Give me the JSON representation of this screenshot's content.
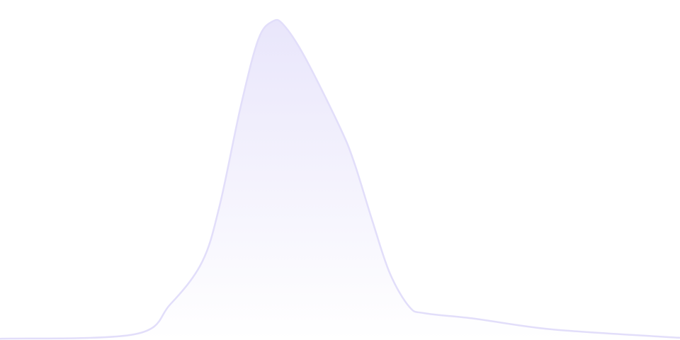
{
  "chart_data": {
    "type": "area",
    "title": "",
    "xlabel": "",
    "ylabel": "",
    "xlim": [
      0,
      100
    ],
    "ylim": [
      0,
      106.7
    ],
    "grid": false,
    "axes_visible": false,
    "legend": "none",
    "x": [
      0,
      19.8,
      25,
      29.7,
      32.3,
      35.4,
      38,
      40.1,
      41.7,
      44.8,
      50,
      52.1,
      54.7,
      57.3,
      60.2,
      62.5,
      69.8,
      81.3,
      100
    ],
    "values": [
      0.4,
      1.8,
      11.1,
      24.4,
      42.2,
      73.3,
      94.4,
      100,
      98.9,
      88.9,
      66.7,
      55.6,
      37.8,
      21.1,
      10.4,
      8.4,
      6.7,
      3.3,
      0.7
    ],
    "colors": {
      "stroke": "#e2defa",
      "fill_top": "#e9e6fb",
      "fill_bottom": "#ffffff"
    }
  }
}
